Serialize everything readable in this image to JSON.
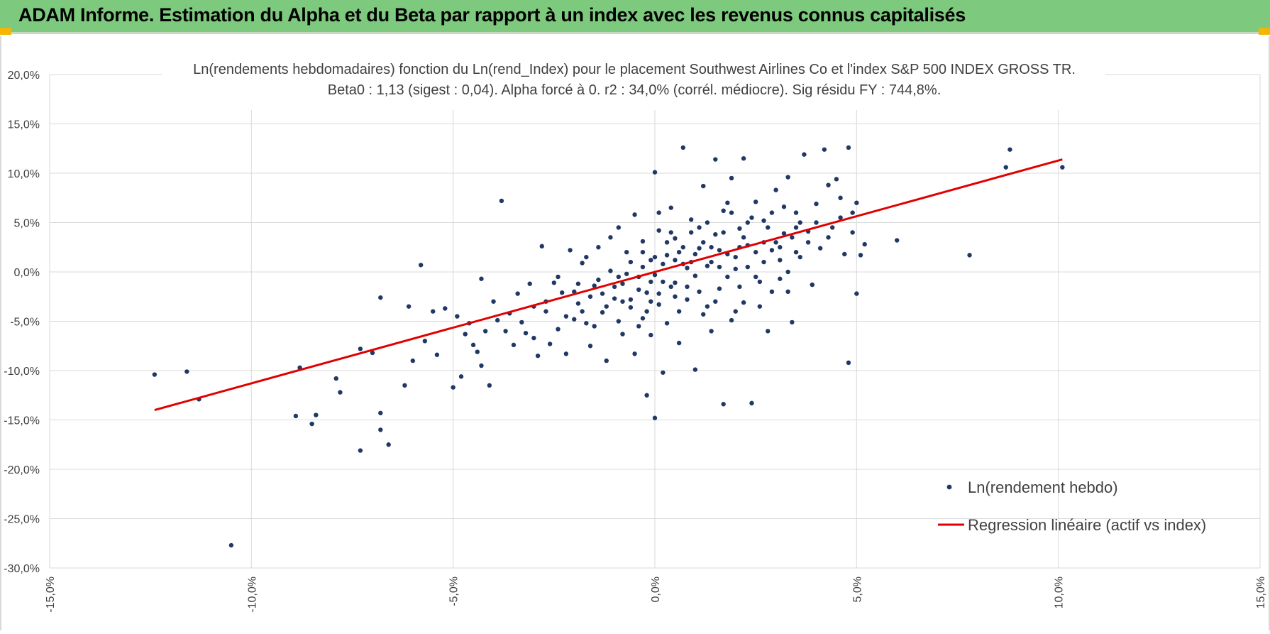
{
  "header": {
    "title": "ADAM Informe. Estimation du Alpha et du Beta par rapport à un index avec les revenus connus capitalisés"
  },
  "chart_data": {
    "type": "scatter",
    "title": "Ln(rendements hebdomadaires) fonction du Ln(rend_Index) pour le placement Southwest Airlines Co et l'index S&P 500 INDEX GROSS TR.",
    "subtitle": "Beta0 : 1,13 (sigest : 0,04). Alpha forcé à 0. r2 : 34,0% (corrél. médiocre). Sig résidu FY : 744,8%.",
    "xlim": [
      -0.15,
      0.15
    ],
    "ylim": [
      -0.3,
      0.2
    ],
    "xticks": [
      "-15,0%",
      "-10,0%",
      "-5,0%",
      "0,0%",
      "5,0%",
      "10,0%",
      "15,0%"
    ],
    "yticks": [
      "20,0%",
      "15,0%",
      "10,0%",
      "5,0%",
      "0,0%",
      "-5,0%",
      "-10,0%",
      "-15,0%",
      "-20,0%",
      "-25,0%",
      "-30,0%"
    ],
    "grid": true,
    "legend_position": "bottom-right",
    "colors": {
      "points": "#203864",
      "regression": "#e00000",
      "grid": "#d9d9d9"
    },
    "series": [
      {
        "name": "Ln(rendement hebdo)",
        "kind": "scatter",
        "points": [
          [
            -0.124,
            -0.104
          ],
          [
            -0.116,
            -0.101
          ],
          [
            -0.113,
            -0.129
          ],
          [
            -0.105,
            -0.277
          ],
          [
            -0.089,
            -0.146
          ],
          [
            -0.088,
            -0.097
          ],
          [
            -0.085,
            -0.154
          ],
          [
            -0.084,
            -0.145
          ],
          [
            -0.079,
            -0.108
          ],
          [
            -0.078,
            -0.122
          ],
          [
            -0.073,
            -0.078
          ],
          [
            -0.073,
            -0.181
          ],
          [
            -0.07,
            -0.082
          ],
          [
            -0.068,
            -0.026
          ],
          [
            -0.068,
            -0.143
          ],
          [
            -0.068,
            -0.16
          ],
          [
            -0.066,
            -0.175
          ],
          [
            -0.062,
            -0.115
          ],
          [
            -0.061,
            -0.035
          ],
          [
            -0.06,
            -0.09
          ],
          [
            -0.058,
            0.007
          ],
          [
            -0.057,
            -0.07
          ],
          [
            -0.055,
            -0.04
          ],
          [
            -0.054,
            -0.084
          ],
          [
            -0.052,
            -0.037
          ],
          [
            -0.05,
            -0.117
          ],
          [
            -0.049,
            -0.045
          ],
          [
            -0.048,
            -0.106
          ],
          [
            -0.047,
            -0.063
          ],
          [
            -0.046,
            -0.052
          ],
          [
            -0.045,
            -0.074
          ],
          [
            -0.044,
            -0.081
          ],
          [
            -0.043,
            -0.007
          ],
          [
            -0.043,
            -0.095
          ],
          [
            -0.042,
            -0.06
          ],
          [
            -0.041,
            -0.115
          ],
          [
            -0.04,
            -0.03
          ],
          [
            -0.039,
            -0.049
          ],
          [
            -0.038,
            0.072
          ],
          [
            -0.037,
            -0.06
          ],
          [
            -0.036,
            -0.042
          ],
          [
            -0.035,
            -0.074
          ],
          [
            -0.034,
            -0.022
          ],
          [
            -0.033,
            -0.051
          ],
          [
            -0.032,
            -0.062
          ],
          [
            -0.031,
            -0.012
          ],
          [
            -0.03,
            -0.035
          ],
          [
            -0.03,
            -0.067
          ],
          [
            -0.029,
            -0.085
          ],
          [
            -0.028,
            0.026
          ],
          [
            -0.027,
            -0.04
          ],
          [
            -0.026,
            -0.073
          ],
          [
            -0.025,
            -0.011
          ],
          [
            -0.024,
            -0.058
          ],
          [
            -0.023,
            -0.021
          ],
          [
            -0.022,
            -0.083
          ],
          [
            -0.021,
            0.022
          ],
          [
            -0.02,
            -0.048
          ],
          [
            -0.019,
            -0.032
          ],
          [
            -0.018,
            0.009
          ],
          [
            -0.017,
            -0.052
          ],
          [
            -0.016,
            -0.075
          ],
          [
            -0.015,
            -0.014
          ],
          [
            -0.014,
            0.025
          ],
          [
            -0.013,
            -0.041
          ],
          [
            -0.012,
            -0.09
          ],
          [
            -0.011,
            0.001
          ],
          [
            -0.01,
            -0.027
          ],
          [
            -0.009,
            0.045
          ],
          [
            -0.008,
            -0.063
          ],
          [
            -0.008,
            -0.012
          ],
          [
            -0.007,
            0.02
          ],
          [
            -0.006,
            -0.036
          ],
          [
            -0.005,
            -0.083
          ],
          [
            -0.005,
            0.058
          ],
          [
            -0.004,
            -0.005
          ],
          [
            -0.003,
            -0.047
          ],
          [
            -0.003,
            0.031
          ],
          [
            -0.002,
            -0.021
          ],
          [
            -0.002,
            -0.125
          ],
          [
            -0.001,
            0.012
          ],
          [
            -0.001,
            -0.064
          ],
          [
            0.0,
            -0.003
          ],
          [
            0.0,
            0.101
          ],
          [
            0.0,
            -0.148
          ],
          [
            0.001,
            0.042
          ],
          [
            0.001,
            -0.033
          ],
          [
            0.002,
            -0.102
          ],
          [
            0.003,
            0.017
          ],
          [
            0.003,
            -0.052
          ],
          [
            0.004,
            0.065
          ],
          [
            0.005,
            -0.011
          ],
          [
            0.005,
            0.034
          ],
          [
            0.006,
            -0.072
          ],
          [
            0.007,
            0.008
          ],
          [
            0.007,
            0.126
          ],
          [
            0.008,
            -0.028
          ],
          [
            0.009,
            0.053
          ],
          [
            0.01,
            -0.004
          ],
          [
            0.01,
            -0.099
          ],
          [
            0.011,
            0.024
          ],
          [
            0.012,
            -0.043
          ],
          [
            0.012,
            0.087
          ],
          [
            0.013,
            0.006
          ],
          [
            0.014,
            -0.06
          ],
          [
            0.015,
            0.038
          ],
          [
            0.015,
            0.114
          ],
          [
            0.016,
            -0.017
          ],
          [
            0.017,
            0.062
          ],
          [
            0.017,
            -0.134
          ],
          [
            0.018,
            0.018
          ],
          [
            0.019,
            -0.049
          ],
          [
            0.019,
            0.095
          ],
          [
            0.02,
            0.003
          ],
          [
            0.021,
            0.044
          ],
          [
            0.022,
            -0.031
          ],
          [
            0.022,
            0.115
          ],
          [
            0.023,
            0.027
          ],
          [
            0.024,
            -0.133
          ],
          [
            0.025,
            0.071
          ],
          [
            0.026,
            -0.01
          ],
          [
            0.027,
            0.052
          ],
          [
            0.028,
            -0.06
          ],
          [
            0.029,
            0.022
          ],
          [
            0.03,
            0.083
          ],
          [
            0.031,
            -0.007
          ],
          [
            0.032,
            0.039
          ],
          [
            0.033,
            0.096
          ],
          [
            0.034,
            -0.051
          ],
          [
            0.035,
            0.06
          ],
          [
            0.036,
            0.015
          ],
          [
            0.037,
            0.119
          ],
          [
            0.038,
            0.041
          ],
          [
            0.039,
            -0.013
          ],
          [
            0.04,
            0.069
          ],
          [
            0.041,
            0.024
          ],
          [
            0.042,
            0.124
          ],
          [
            0.043,
            0.088
          ],
          [
            0.044,
            0.045
          ],
          [
            0.045,
            0.094
          ],
          [
            0.046,
            0.055
          ],
          [
            0.047,
            0.018
          ],
          [
            0.048,
            0.126
          ],
          [
            0.048,
            -0.092
          ],
          [
            0.049,
            0.04
          ],
          [
            0.05,
            0.07
          ],
          [
            0.05,
            -0.022
          ],
          [
            0.051,
            0.017
          ],
          [
            0.052,
            0.028
          ],
          [
            0.06,
            0.032
          ],
          [
            0.078,
            0.017
          ],
          [
            0.087,
            0.106
          ],
          [
            0.088,
            0.124
          ],
          [
            0.101,
            0.106
          ],
          [
            -0.02,
            -0.02
          ],
          [
            -0.018,
            -0.04
          ],
          [
            -0.016,
            -0.025
          ],
          [
            -0.014,
            -0.008
          ],
          [
            -0.012,
            -0.035
          ],
          [
            -0.01,
            -0.015
          ],
          [
            -0.009,
            -0.05
          ],
          [
            -0.007,
            -0.002
          ],
          [
            -0.006,
            -0.028
          ],
          [
            -0.004,
            -0.018
          ],
          [
            -0.003,
            0.005
          ],
          [
            -0.002,
            -0.04
          ],
          [
            -0.001,
            -0.01
          ],
          [
            0.0,
            0.015
          ],
          [
            0.001,
            -0.022
          ],
          [
            0.002,
            0.008
          ],
          [
            0.003,
            0.03
          ],
          [
            0.004,
            -0.015
          ],
          [
            0.005,
            0.012
          ],
          [
            0.006,
            -0.04
          ],
          [
            0.007,
            0.025
          ],
          [
            0.008,
            0.004
          ],
          [
            0.009,
            0.04
          ],
          [
            0.01,
            0.018
          ],
          [
            0.011,
            -0.02
          ],
          [
            0.012,
            0.03
          ],
          [
            0.013,
            0.05
          ],
          [
            0.014,
            0.01
          ],
          [
            0.015,
            -0.03
          ],
          [
            0.016,
            0.022
          ],
          [
            0.017,
            0.04
          ],
          [
            0.018,
            -0.005
          ],
          [
            0.019,
            0.06
          ],
          [
            0.02,
            0.015
          ],
          [
            0.021,
            -0.015
          ],
          [
            0.022,
            0.035
          ],
          [
            0.023,
            0.005
          ],
          [
            0.024,
            0.055
          ],
          [
            0.025,
            0.02
          ],
          [
            0.026,
            -0.035
          ],
          [
            0.027,
            0.01
          ],
          [
            0.028,
            0.045
          ],
          [
            0.029,
            -0.02
          ],
          [
            0.03,
            0.03
          ],
          [
            0.031,
            0.012
          ],
          [
            0.032,
            0.066
          ],
          [
            0.033,
            0.0
          ],
          [
            0.034,
            0.035
          ],
          [
            0.035,
            0.02
          ],
          [
            0.036,
            0.05
          ],
          [
            -0.027,
            -0.03
          ],
          [
            -0.024,
            -0.005
          ],
          [
            -0.022,
            -0.045
          ],
          [
            -0.019,
            -0.012
          ],
          [
            -0.017,
            0.015
          ],
          [
            -0.015,
            -0.055
          ],
          [
            -0.013,
            -0.022
          ],
          [
            -0.011,
            0.035
          ],
          [
            -0.009,
            -0.005
          ],
          [
            -0.008,
            -0.03
          ],
          [
            -0.006,
            0.01
          ],
          [
            -0.004,
            -0.055
          ],
          [
            -0.003,
            0.02
          ],
          [
            -0.001,
            -0.03
          ],
          [
            0.001,
            0.06
          ],
          [
            0.002,
            -0.01
          ],
          [
            0.004,
            0.04
          ],
          [
            0.005,
            -0.025
          ],
          [
            0.006,
            0.02
          ],
          [
            0.008,
            -0.015
          ],
          [
            0.009,
            0.01
          ],
          [
            0.011,
            0.045
          ],
          [
            0.013,
            -0.035
          ],
          [
            0.014,
            0.025
          ],
          [
            0.016,
            0.005
          ],
          [
            0.018,
            0.07
          ],
          [
            0.02,
            -0.04
          ],
          [
            0.021,
            0.025
          ],
          [
            0.023,
            0.05
          ],
          [
            0.025,
            -0.005
          ],
          [
            0.027,
            0.03
          ],
          [
            0.029,
            0.06
          ],
          [
            0.031,
            0.025
          ],
          [
            0.033,
            -0.02
          ],
          [
            0.035,
            0.045
          ],
          [
            0.038,
            0.03
          ],
          [
            0.04,
            0.05
          ],
          [
            0.043,
            0.035
          ],
          [
            0.046,
            0.075
          ],
          [
            0.049,
            0.06
          ]
        ]
      },
      {
        "name": "Regression linéaire (actif vs index)",
        "kind": "line",
        "points": [
          [
            -0.124,
            -0.14
          ],
          [
            0.101,
            0.114
          ]
        ]
      }
    ]
  }
}
